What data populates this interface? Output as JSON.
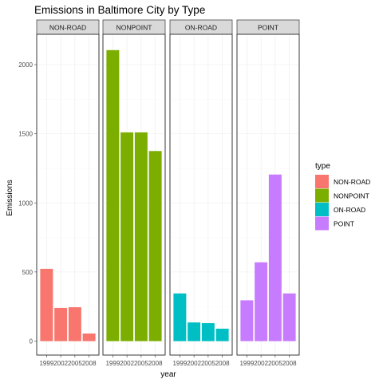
{
  "chart_data": {
    "type": "bar",
    "title": "Emissions in Baltimore City by Type",
    "xlabel": "year",
    "ylabel": "Emissions",
    "categories": [
      "1999",
      "2002",
      "2005",
      "2008"
    ],
    "ylim": [
      0,
      2200
    ],
    "yticks": [
      0,
      500,
      1000,
      1500,
      2000
    ],
    "grid": true,
    "facet_by": "type",
    "legend": {
      "title": "type",
      "position": "right",
      "entries": [
        {
          "label": "NON-ROAD",
          "color": "#F8766D"
        },
        {
          "label": "NONPOINT",
          "color": "#7CAE00"
        },
        {
          "label": "ON-ROAD",
          "color": "#00BFC4"
        },
        {
          "label": "POINT",
          "color": "#C77CFF"
        }
      ]
    },
    "series": [
      {
        "name": "NON-ROAD",
        "color": "#F8766D",
        "values": [
          523,
          240,
          245,
          55
        ]
      },
      {
        "name": "NONPOINT",
        "color": "#7CAE00",
        "values": [
          2105,
          1510,
          1510,
          1375
        ]
      },
      {
        "name": "ON-ROAD",
        "color": "#00BFC4",
        "values": [
          345,
          135,
          130,
          90
        ]
      },
      {
        "name": "POINT",
        "color": "#C77CFF",
        "values": [
          295,
          570,
          1205,
          345
        ]
      }
    ]
  }
}
